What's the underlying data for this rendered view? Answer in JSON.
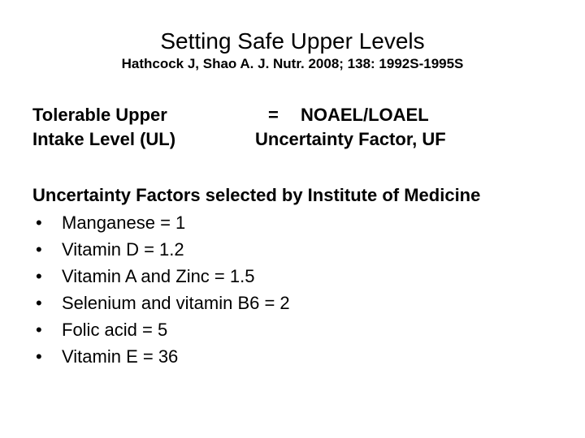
{
  "title": "Setting Safe Upper Levels",
  "citation": "Hathcock J, Shao A.  J. Nutr. 2008; 138: 1992S-1995S",
  "equation": {
    "left_line1": "Tolerable Upper",
    "left_line2": "Intake Level (UL)",
    "equals": "=",
    "numerator": "NOAEL/LOAEL",
    "denominator": "Uncertainty Factor, UF"
  },
  "section_heading": "Uncertainty Factors  selected by Institute of Medicine",
  "bullets": [
    "Manganese  = 1",
    "Vitamin D = 1.2",
    "Vitamin A and Zinc = 1.5",
    "Selenium and vitamin B6 = 2",
    "Folic acid = 5",
    "Vitamin E = 36"
  ],
  "colors": {
    "background": "#ffffff",
    "text": "#000000"
  },
  "fonts": {
    "title_size": 28,
    "citation_size": 17,
    "body_size": 22
  }
}
